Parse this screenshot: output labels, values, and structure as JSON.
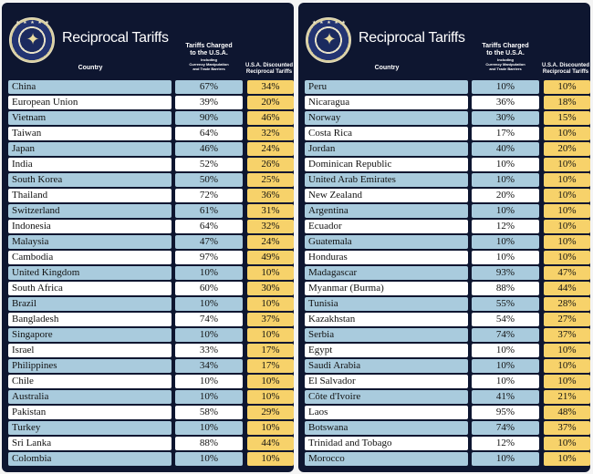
{
  "header": {
    "title": "Reciprocal Tariffs",
    "col_country": "Country",
    "col_charged_line1": "Tariffs Charged",
    "col_charged_line2": "to the U.S.A.",
    "col_charged_sub1": "Including",
    "col_charged_sub2": "Currency Manipulation",
    "col_charged_sub3": "and Trade Barriers",
    "col_discount_line1": "U.S.A. Discounted",
    "col_discount_line2": "Reciprocal Tariffs"
  },
  "colors": {
    "panel": "#0e1630",
    "row_blue": "#a9cbdd",
    "row_white": "#ffffff",
    "discount": "#f7d26a"
  },
  "seal_icon": "presidential-seal-icon",
  "left_rows": [
    {
      "country": "China",
      "charged": "67%",
      "discount": "34%"
    },
    {
      "country": "European Union",
      "charged": "39%",
      "discount": "20%"
    },
    {
      "country": "Vietnam",
      "charged": "90%",
      "discount": "46%"
    },
    {
      "country": "Taiwan",
      "charged": "64%",
      "discount": "32%"
    },
    {
      "country": "Japan",
      "charged": "46%",
      "discount": "24%"
    },
    {
      "country": "India",
      "charged": "52%",
      "discount": "26%"
    },
    {
      "country": "South Korea",
      "charged": "50%",
      "discount": "25%"
    },
    {
      "country": "Thailand",
      "charged": "72%",
      "discount": "36%"
    },
    {
      "country": "Switzerland",
      "charged": "61%",
      "discount": "31%"
    },
    {
      "country": "Indonesia",
      "charged": "64%",
      "discount": "32%"
    },
    {
      "country": "Malaysia",
      "charged": "47%",
      "discount": "24%"
    },
    {
      "country": "Cambodia",
      "charged": "97%",
      "discount": "49%"
    },
    {
      "country": "United Kingdom",
      "charged": "10%",
      "discount": "10%"
    },
    {
      "country": "South Africa",
      "charged": "60%",
      "discount": "30%"
    },
    {
      "country": "Brazil",
      "charged": "10%",
      "discount": "10%"
    },
    {
      "country": "Bangladesh",
      "charged": "74%",
      "discount": "37%"
    },
    {
      "country": "Singapore",
      "charged": "10%",
      "discount": "10%"
    },
    {
      "country": "Israel",
      "charged": "33%",
      "discount": "17%"
    },
    {
      "country": "Philippines",
      "charged": "34%",
      "discount": "17%"
    },
    {
      "country": "Chile",
      "charged": "10%",
      "discount": "10%"
    },
    {
      "country": "Australia",
      "charged": "10%",
      "discount": "10%"
    },
    {
      "country": "Pakistan",
      "charged": "58%",
      "discount": "29%"
    },
    {
      "country": "Turkey",
      "charged": "10%",
      "discount": "10%"
    },
    {
      "country": "Sri Lanka",
      "charged": "88%",
      "discount": "44%"
    },
    {
      "country": "Colombia",
      "charged": "10%",
      "discount": "10%"
    }
  ],
  "right_rows": [
    {
      "country": "Peru",
      "charged": "10%",
      "discount": "10%"
    },
    {
      "country": "Nicaragua",
      "charged": "36%",
      "discount": "18%"
    },
    {
      "country": "Norway",
      "charged": "30%",
      "discount": "15%"
    },
    {
      "country": "Costa Rica",
      "charged": "17%",
      "discount": "10%"
    },
    {
      "country": "Jordan",
      "charged": "40%",
      "discount": "20%"
    },
    {
      "country": "Dominican Republic",
      "charged": "10%",
      "discount": "10%"
    },
    {
      "country": "United Arab Emirates",
      "charged": "10%",
      "discount": "10%"
    },
    {
      "country": "New Zealand",
      "charged": "20%",
      "discount": "10%"
    },
    {
      "country": "Argentina",
      "charged": "10%",
      "discount": "10%"
    },
    {
      "country": "Ecuador",
      "charged": "12%",
      "discount": "10%"
    },
    {
      "country": "Guatemala",
      "charged": "10%",
      "discount": "10%"
    },
    {
      "country": "Honduras",
      "charged": "10%",
      "discount": "10%"
    },
    {
      "country": "Madagascar",
      "charged": "93%",
      "discount": "47%"
    },
    {
      "country": "Myanmar (Burma)",
      "charged": "88%",
      "discount": "44%"
    },
    {
      "country": "Tunisia",
      "charged": "55%",
      "discount": "28%"
    },
    {
      "country": "Kazakhstan",
      "charged": "54%",
      "discount": "27%"
    },
    {
      "country": "Serbia",
      "charged": "74%",
      "discount": "37%"
    },
    {
      "country": "Egypt",
      "charged": "10%",
      "discount": "10%"
    },
    {
      "country": "Saudi Arabia",
      "charged": "10%",
      "discount": "10%"
    },
    {
      "country": "El Salvador",
      "charged": "10%",
      "discount": "10%"
    },
    {
      "country": "Côte d'Ivoire",
      "charged": "41%",
      "discount": "21%"
    },
    {
      "country": "Laos",
      "charged": "95%",
      "discount": "48%"
    },
    {
      "country": "Botswana",
      "charged": "74%",
      "discount": "37%"
    },
    {
      "country": "Trinidad and Tobago",
      "charged": "12%",
      "discount": "10%"
    },
    {
      "country": "Morocco",
      "charged": "10%",
      "discount": "10%"
    }
  ]
}
